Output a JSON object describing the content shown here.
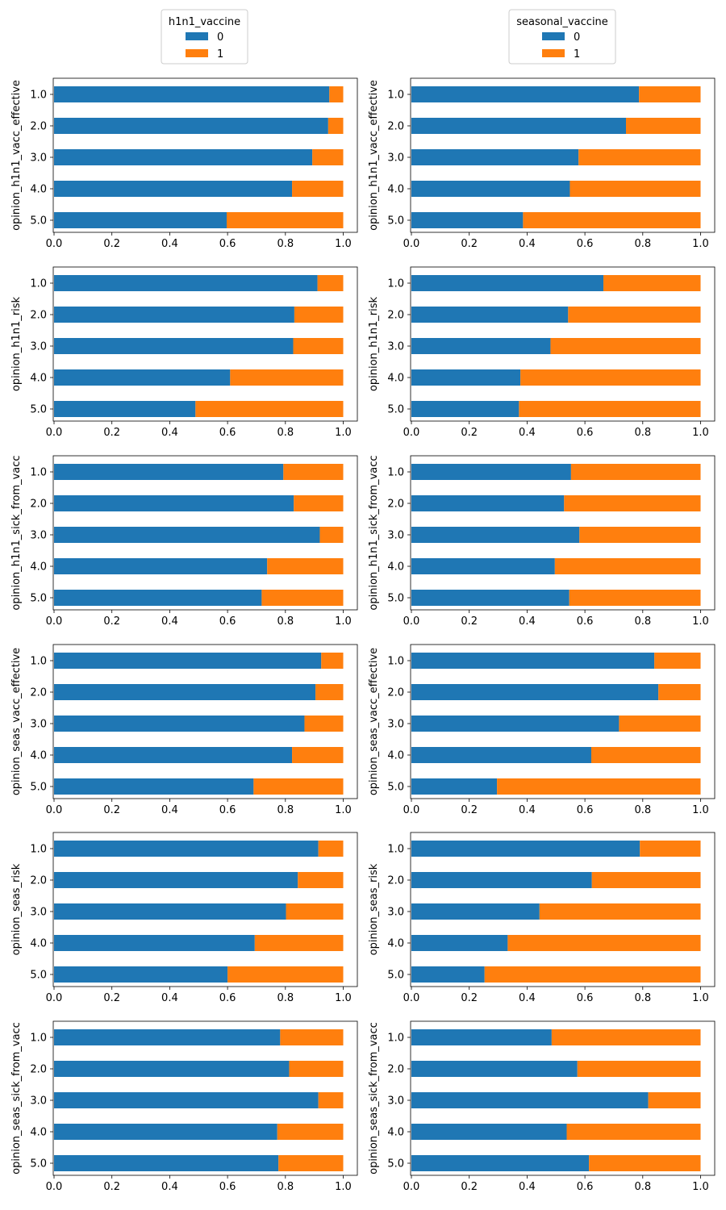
{
  "legends": [
    {
      "title": "h1n1_vaccine",
      "entries": [
        "0",
        "1"
      ]
    },
    {
      "title": "seasonal_vaccine",
      "entries": [
        "0",
        "1"
      ]
    }
  ],
  "colors": {
    "class_0": "#1f77b4",
    "class_1": "#ff7f0e"
  },
  "chart_data": [
    {
      "type": "bar",
      "orientation": "horizontal",
      "stacked": true,
      "ylabel": "opinion_h1n1_vacc_effective",
      "legend_title": "h1n1_vaccine",
      "categories": [
        "1.0",
        "2.0",
        "3.0",
        "4.0",
        "5.0"
      ],
      "x_ticks": [
        "0.0",
        "0.2",
        "0.4",
        "0.6",
        "0.8",
        "1.0"
      ],
      "xlim": [
        0,
        1.05
      ],
      "series": [
        {
          "name": "0",
          "values": [
            0.952,
            0.948,
            0.893,
            0.823,
            0.597
          ]
        },
        {
          "name": "1",
          "values": [
            0.048,
            0.052,
            0.107,
            0.177,
            0.403
          ]
        }
      ]
    },
    {
      "type": "bar",
      "orientation": "horizontal",
      "stacked": true,
      "ylabel": "opinion_h1n1_vacc_effective",
      "legend_title": "seasonal_vaccine",
      "categories": [
        "1.0",
        "2.0",
        "3.0",
        "4.0",
        "5.0"
      ],
      "x_ticks": [
        "0.0",
        "0.2",
        "0.4",
        "0.6",
        "0.8",
        "1.0"
      ],
      "xlim": [
        0,
        1.05
      ],
      "series": [
        {
          "name": "0",
          "values": [
            0.787,
            0.742,
            0.578,
            0.548,
            0.386
          ]
        },
        {
          "name": "1",
          "values": [
            0.213,
            0.258,
            0.422,
            0.452,
            0.614
          ]
        }
      ]
    },
    {
      "type": "bar",
      "orientation": "horizontal",
      "stacked": true,
      "ylabel": "opinion_h1n1_risk",
      "legend_title": "h1n1_vaccine",
      "categories": [
        "1.0",
        "2.0",
        "3.0",
        "4.0",
        "5.0"
      ],
      "x_ticks": [
        "0.0",
        "0.2",
        "0.4",
        "0.6",
        "0.8",
        "1.0"
      ],
      "xlim": [
        0,
        1.05
      ],
      "series": [
        {
          "name": "0",
          "values": [
            0.911,
            0.831,
            0.827,
            0.609,
            0.489
          ]
        },
        {
          "name": "1",
          "values": [
            0.089,
            0.169,
            0.173,
            0.391,
            0.511
          ]
        }
      ]
    },
    {
      "type": "bar",
      "orientation": "horizontal",
      "stacked": true,
      "ylabel": "opinion_h1n1_risk",
      "legend_title": "seasonal_vaccine",
      "categories": [
        "1.0",
        "2.0",
        "3.0",
        "4.0",
        "5.0"
      ],
      "x_ticks": [
        "0.0",
        "0.2",
        "0.4",
        "0.6",
        "0.8",
        "1.0"
      ],
      "xlim": [
        0,
        1.05
      ],
      "series": [
        {
          "name": "0",
          "values": [
            0.664,
            0.542,
            0.481,
            0.377,
            0.372
          ]
        },
        {
          "name": "1",
          "values": [
            0.336,
            0.458,
            0.519,
            0.623,
            0.628
          ]
        }
      ]
    },
    {
      "type": "bar",
      "orientation": "horizontal",
      "stacked": true,
      "ylabel": "opinion_h1n1_sick_from_vacc",
      "legend_title": "h1n1_vaccine",
      "categories": [
        "1.0",
        "2.0",
        "3.0",
        "4.0",
        "5.0"
      ],
      "x_ticks": [
        "0.0",
        "0.2",
        "0.4",
        "0.6",
        "0.8",
        "1.0"
      ],
      "xlim": [
        0,
        1.05
      ],
      "series": [
        {
          "name": "0",
          "values": [
            0.793,
            0.829,
            0.919,
            0.737,
            0.718
          ]
        },
        {
          "name": "1",
          "values": [
            0.207,
            0.171,
            0.081,
            0.263,
            0.282
          ]
        }
      ]
    },
    {
      "type": "bar",
      "orientation": "horizontal",
      "stacked": true,
      "ylabel": "opinion_h1n1_sick_from_vacc",
      "legend_title": "seasonal_vaccine",
      "categories": [
        "1.0",
        "2.0",
        "3.0",
        "4.0",
        "5.0"
      ],
      "x_ticks": [
        "0.0",
        "0.2",
        "0.4",
        "0.6",
        "0.8",
        "1.0"
      ],
      "xlim": [
        0,
        1.05
      ],
      "series": [
        {
          "name": "0",
          "values": [
            0.552,
            0.528,
            0.581,
            0.496,
            0.546
          ]
        },
        {
          "name": "1",
          "values": [
            0.448,
            0.472,
            0.419,
            0.504,
            0.454
          ]
        }
      ]
    },
    {
      "type": "bar",
      "orientation": "horizontal",
      "stacked": true,
      "ylabel": "opinion_seas_vacc_effective",
      "legend_title": "h1n1_vaccine",
      "categories": [
        "1.0",
        "2.0",
        "3.0",
        "4.0",
        "5.0"
      ],
      "x_ticks": [
        "0.0",
        "0.2",
        "0.4",
        "0.6",
        "0.8",
        "1.0"
      ],
      "xlim": [
        0,
        1.05
      ],
      "series": [
        {
          "name": "0",
          "values": [
            0.924,
            0.904,
            0.866,
            0.823,
            0.69
          ]
        },
        {
          "name": "1",
          "values": [
            0.076,
            0.096,
            0.134,
            0.177,
            0.31
          ]
        }
      ]
    },
    {
      "type": "bar",
      "orientation": "horizontal",
      "stacked": true,
      "ylabel": "opinion_seas_vacc_effective",
      "legend_title": "seasonal_vaccine",
      "categories": [
        "1.0",
        "2.0",
        "3.0",
        "4.0",
        "5.0"
      ],
      "x_ticks": [
        "0.0",
        "0.2",
        "0.4",
        "0.6",
        "0.8",
        "1.0"
      ],
      "xlim": [
        0,
        1.05
      ],
      "series": [
        {
          "name": "0",
          "values": [
            0.84,
            0.854,
            0.718,
            0.622,
            0.296
          ]
        },
        {
          "name": "1",
          "values": [
            0.16,
            0.146,
            0.282,
            0.378,
            0.704
          ]
        }
      ]
    },
    {
      "type": "bar",
      "orientation": "horizontal",
      "stacked": true,
      "ylabel": "opinion_seas_risk",
      "legend_title": "h1n1_vaccine",
      "categories": [
        "1.0",
        "2.0",
        "3.0",
        "4.0",
        "5.0"
      ],
      "x_ticks": [
        "0.0",
        "0.2",
        "0.4",
        "0.6",
        "0.8",
        "1.0"
      ],
      "xlim": [
        0,
        1.05
      ],
      "series": [
        {
          "name": "0",
          "values": [
            0.914,
            0.843,
            0.802,
            0.694,
            0.6
          ]
        },
        {
          "name": "1",
          "values": [
            0.086,
            0.157,
            0.198,
            0.306,
            0.4
          ]
        }
      ]
    },
    {
      "type": "bar",
      "orientation": "horizontal",
      "stacked": true,
      "ylabel": "opinion_seas_risk",
      "legend_title": "seasonal_vaccine",
      "categories": [
        "1.0",
        "2.0",
        "3.0",
        "4.0",
        "5.0"
      ],
      "x_ticks": [
        "0.0",
        "0.2",
        "0.4",
        "0.6",
        "0.8",
        "1.0"
      ],
      "xlim": [
        0,
        1.05
      ],
      "series": [
        {
          "name": "0",
          "values": [
            0.79,
            0.624,
            0.443,
            0.333,
            0.253
          ]
        },
        {
          "name": "1",
          "values": [
            0.21,
            0.376,
            0.557,
            0.667,
            0.747
          ]
        }
      ]
    },
    {
      "type": "bar",
      "orientation": "horizontal",
      "stacked": true,
      "ylabel": "opinion_seas_sick_from_vacc",
      "legend_title": "h1n1_vaccine",
      "categories": [
        "1.0",
        "2.0",
        "3.0",
        "4.0",
        "5.0"
      ],
      "x_ticks": [
        "0.0",
        "0.2",
        "0.4",
        "0.6",
        "0.8",
        "1.0"
      ],
      "xlim": [
        0,
        1.05
      ],
      "series": [
        {
          "name": "0",
          "values": [
            0.782,
            0.813,
            0.914,
            0.772,
            0.776
          ]
        },
        {
          "name": "1",
          "values": [
            0.218,
            0.187,
            0.086,
            0.228,
            0.224
          ]
        }
      ]
    },
    {
      "type": "bar",
      "orientation": "horizontal",
      "stacked": true,
      "ylabel": "opinion_seas_sick_from_vacc",
      "legend_title": "seasonal_vaccine",
      "categories": [
        "1.0",
        "2.0",
        "3.0",
        "4.0",
        "5.0"
      ],
      "x_ticks": [
        "0.0",
        "0.2",
        "0.4",
        "0.6",
        "0.8",
        "1.0"
      ],
      "xlim": [
        0,
        1.05
      ],
      "series": [
        {
          "name": "0",
          "values": [
            0.485,
            0.574,
            0.819,
            0.537,
            0.614
          ]
        },
        {
          "name": "1",
          "values": [
            0.515,
            0.426,
            0.181,
            0.463,
            0.386
          ]
        }
      ]
    }
  ]
}
